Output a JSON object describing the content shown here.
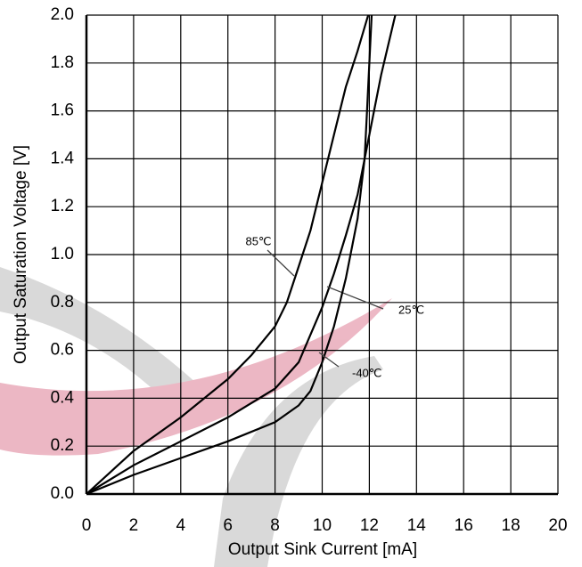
{
  "chart_data": {
    "type": "line",
    "x_label": "Output Sink Current [mA]",
    "y_label": "Output Saturation Voltage [V]",
    "xlim": [
      0,
      20
    ],
    "xticks": [
      0,
      2,
      4,
      6,
      8,
      10,
      12,
      14,
      16,
      18,
      20
    ],
    "ylim": [
      0,
      2
    ],
    "yticks": [
      {
        "value": 0,
        "label": "0.0"
      },
      0.2,
      0.4,
      0.6,
      0.8,
      {
        "value": 1,
        "label": "1.0"
      },
      1.2,
      1.4,
      1.6,
      1.8,
      {
        "value": 2,
        "label": "2.0"
      }
    ],
    "grid": true,
    "series": [
      {
        "name": "85℃",
        "color": "#000000",
        "x": [
          0,
          2,
          4,
          6,
          7,
          8,
          8.5,
          9,
          9.5,
          10,
          10.5,
          11,
          11.5,
          11.95
        ],
        "values": [
          0,
          0.18,
          0.32,
          0.48,
          0.58,
          0.7,
          0.8,
          0.95,
          1.1,
          1.3,
          1.5,
          1.7,
          1.85,
          2.0
        ]
      },
      {
        "name": "25℃",
        "color": "#000000",
        "x": [
          0,
          2,
          4,
          6,
          8,
          9,
          10,
          10.5,
          11,
          11.5,
          12,
          12.5,
          13.1
        ],
        "values": [
          0,
          0.12,
          0.22,
          0.32,
          0.44,
          0.55,
          0.78,
          0.92,
          1.08,
          1.25,
          1.5,
          1.75,
          2.0
        ]
      },
      {
        "name": "-40℃",
        "color": "#000000",
        "x": [
          0,
          2,
          4,
          6,
          8,
          9,
          9.5,
          10,
          10.5,
          11,
          11.5,
          11.8,
          11.9,
          12.0,
          12.1
        ],
        "values": [
          0,
          0.08,
          0.15,
          0.22,
          0.3,
          0.37,
          0.43,
          0.55,
          0.7,
          0.9,
          1.15,
          1.4,
          1.6,
          1.8,
          2.0
        ]
      }
    ]
  }
}
